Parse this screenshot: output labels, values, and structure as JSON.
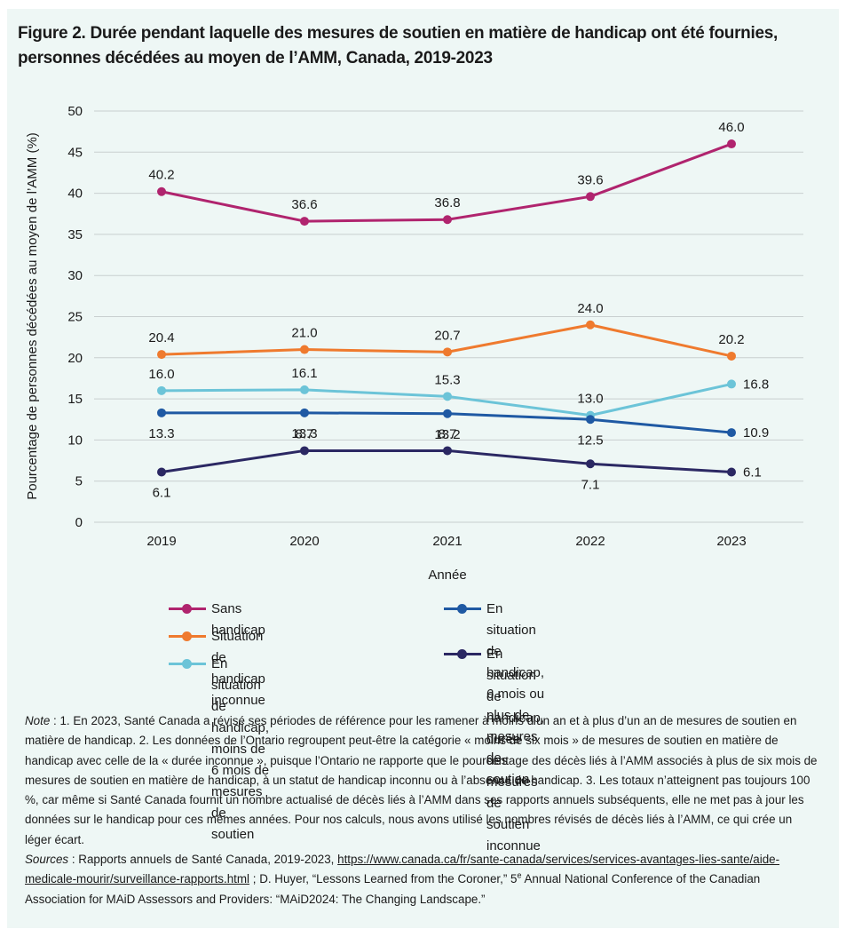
{
  "title": "Figure 2. Durée pendant laquelle des mesures de soutien en matière de handicap ont été fournies, personnes décédées au moyen de l’AMM, Canada, 2019-2023",
  "chart_data": {
    "type": "line",
    "xlabel": "Année",
    "ylabel": "Pourcentage de personnes décédées au moyen de l’AMM (%)",
    "ylim": [
      0,
      50
    ],
    "yticks": [
      0,
      5,
      10,
      15,
      20,
      25,
      30,
      35,
      40,
      45,
      50
    ],
    "grid": true,
    "legend_position": "bottom",
    "x": [
      "2019",
      "2020",
      "2021",
      "2022",
      "2023"
    ],
    "series": [
      {
        "name": "Sans handicap",
        "color": "#b0246e",
        "values": [
          40.2,
          36.6,
          36.8,
          39.6,
          46.0
        ],
        "labels": [
          "40.2",
          "36.6",
          "36.8",
          "39.6",
          "46.0"
        ]
      },
      {
        "name": "Situation de handicap inconnue",
        "color": "#ef7a2e",
        "values": [
          20.4,
          21.0,
          20.7,
          24.0,
          20.2
        ],
        "labels": [
          "20.4",
          "21.0",
          "20.7",
          "24.0",
          "20.2"
        ]
      },
      {
        "name": "En situation de handicap, moins de 6 mois de mesures de soutien",
        "color": "#6cc4d8",
        "values": [
          16.0,
          16.1,
          15.3,
          13.0,
          16.8
        ],
        "labels": [
          "16.0",
          "16.1",
          "15.3",
          "13.0",
          "16.8"
        ]
      },
      {
        "name": "En situation de handicap, 6 mois ou plus de mesures de soutien",
        "color": "#1f59a3",
        "values": [
          13.3,
          13.3,
          13.2,
          12.5,
          10.9
        ],
        "labels": [
          "13.3",
          "13.3",
          "13.2",
          "12.5",
          "10.9"
        ]
      },
      {
        "name": "En situation de handicap, durée des mesures de soutien inconnue",
        "color": "#2b2863",
        "values": [
          6.1,
          8.7,
          8.7,
          7.1,
          6.1
        ],
        "labels": [
          "6.1",
          "8.7",
          "8.7",
          "7.1",
          "6.1"
        ]
      }
    ]
  },
  "legend": {
    "items": [
      {
        "lines": [
          "Sans handicap"
        ]
      },
      {
        "lines": [
          "Situation de handicap inconnue"
        ]
      },
      {
        "lines": [
          "En situation de handicap, moins de",
          "6 mois de mesures de soutien"
        ]
      },
      {
        "lines": [
          "En situation de handicap, 6 mois ou plus de",
          "mesures de soutien"
        ]
      },
      {
        "lines": [
          "En situation de handicap, durée des mesures",
          "de soutien inconnue"
        ]
      }
    ]
  },
  "notes": {
    "note_label": "Note",
    "note_text": " : 1. En 2023, Santé Canada a révisé ses périodes de référence pour les ramener à moins d’un an et à plus d’un an de mesures de soutien en matière de handicap. 2. Les données de l’Ontario regroupent peut-être la catégorie « moins de six mois » de mesures de soutien en matière de handicap avec celle de la « durée inconnue », puisque l’Ontario ne rapporte que le pourcentage des décès liés à l’AMM associés à plus de six mois de mesures de soutien en matière de handicap, à un statut de handicap inconnu ou à l’absence de handicap. 3. Les totaux n’atteignent pas toujours 100 %, car même si Santé Canada fournit un nombre actualisé de décès liés à l’AMM dans ses rapports annuels subséquents, elle ne met pas à jour les données sur le handicap pour ces mêmes années. Pour nos calculs, nous avons utilisé les nombres révisés de décès liés à l’AMM, ce qui crée un léger écart.",
    "sources_label": "Sources",
    "sources_prefix": " : Rapports annuels de Santé Canada, 2019-2023, ",
    "sources_link": "https://www.canada.ca/fr/sante-canada/services/services-avantages-lies-sante/aide-medicale-mourir/surveillance-rapports.html",
    "sources_mid": " ; D. Huyer, “Lessons Learned from the Coroner,” 5",
    "sources_sup": "e",
    "sources_end": " Annual National Conference of the Canadian Association for MAiD Assessors and Providers: “MAiD2024: The Changing Landscape.”"
  }
}
